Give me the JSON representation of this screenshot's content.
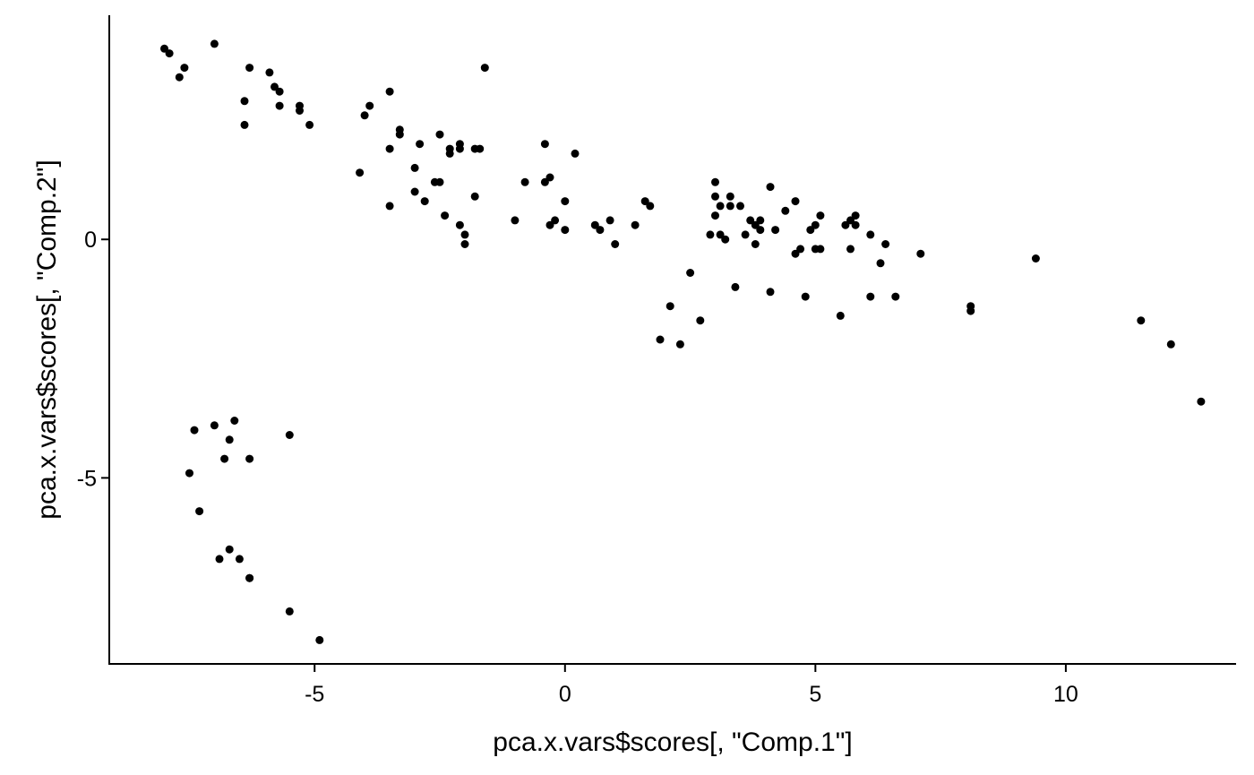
{
  "chart_data": {
    "type": "scatter",
    "xlabel": "pca.x.vars$scores[, \"Comp.1\"]",
    "ylabel": "pca.x.vars$scores[, \"Comp.2\"]",
    "xlim": [
      -9.1,
      13.4
    ],
    "ylim": [
      -8.9,
      4.7
    ],
    "xticks": [
      -5,
      0,
      5,
      10
    ],
    "yticks": [
      -5,
      0
    ],
    "grid": false,
    "legend": "none",
    "point_color": "#000000",
    "points": [
      [
        -8.0,
        4.0
      ],
      [
        -7.9,
        3.9
      ],
      [
        -7.7,
        3.4
      ],
      [
        -7.6,
        3.6
      ],
      [
        -7.0,
        4.1
      ],
      [
        -6.3,
        3.6
      ],
      [
        -6.4,
        2.9
      ],
      [
        -6.4,
        2.4
      ],
      [
        -5.9,
        3.5
      ],
      [
        -5.8,
        3.2
      ],
      [
        -5.7,
        3.1
      ],
      [
        -5.7,
        2.8
      ],
      [
        -5.3,
        2.8
      ],
      [
        -5.3,
        2.7
      ],
      [
        -5.1,
        2.4
      ],
      [
        -4.1,
        1.4
      ],
      [
        -4.0,
        2.6
      ],
      [
        -3.9,
        2.8
      ],
      [
        -3.5,
        1.9
      ],
      [
        -3.5,
        0.7
      ],
      [
        -3.5,
        3.1
      ],
      [
        -3.3,
        2.3
      ],
      [
        -3.3,
        2.2
      ],
      [
        -3.0,
        1.5
      ],
      [
        -3.0,
        1.0
      ],
      [
        -2.9,
        2.0
      ],
      [
        -2.8,
        0.8
      ],
      [
        -2.6,
        1.2
      ],
      [
        -2.5,
        2.2
      ],
      [
        -2.5,
        1.2
      ],
      [
        -2.4,
        0.5
      ],
      [
        -2.3,
        1.8
      ],
      [
        -2.3,
        1.9
      ],
      [
        -2.1,
        2.0
      ],
      [
        -2.1,
        1.9
      ],
      [
        -2.1,
        0.3
      ],
      [
        -2.0,
        0.1
      ],
      [
        -2.0,
        -0.1
      ],
      [
        -1.8,
        1.9
      ],
      [
        -1.8,
        0.9
      ],
      [
        -1.7,
        1.9
      ],
      [
        -1.6,
        3.6
      ],
      [
        -1.0,
        0.4
      ],
      [
        -0.8,
        1.2
      ],
      [
        -0.4,
        2.0
      ],
      [
        -0.4,
        1.2
      ],
      [
        -0.3,
        1.3
      ],
      [
        -0.3,
        0.3
      ],
      [
        -0.2,
        0.4
      ],
      [
        0.0,
        0.2
      ],
      [
        0.0,
        0.8
      ],
      [
        0.2,
        1.8
      ],
      [
        0.6,
        0.3
      ],
      [
        0.7,
        0.2
      ],
      [
        0.9,
        0.4
      ],
      [
        1.0,
        -0.1
      ],
      [
        1.4,
        0.3
      ],
      [
        1.6,
        0.8
      ],
      [
        1.7,
        0.7
      ],
      [
        1.9,
        -2.1
      ],
      [
        2.1,
        -1.4
      ],
      [
        2.3,
        -2.2
      ],
      [
        2.5,
        -0.7
      ],
      [
        2.7,
        -1.7
      ],
      [
        2.9,
        0.1
      ],
      [
        3.0,
        0.5
      ],
      [
        3.0,
        0.9
      ],
      [
        3.0,
        1.2
      ],
      [
        3.1,
        0.7
      ],
      [
        3.1,
        0.1
      ],
      [
        3.2,
        0.0
      ],
      [
        3.3,
        0.7
      ],
      [
        3.3,
        0.9
      ],
      [
        3.4,
        -1.0
      ],
      [
        3.5,
        0.7
      ],
      [
        3.6,
        0.1
      ],
      [
        3.7,
        0.4
      ],
      [
        3.8,
        0.3
      ],
      [
        3.8,
        -0.1
      ],
      [
        3.9,
        0.2
      ],
      [
        3.9,
        0.4
      ],
      [
        4.1,
        1.1
      ],
      [
        4.1,
        -1.1
      ],
      [
        4.2,
        0.2
      ],
      [
        4.4,
        0.6
      ],
      [
        4.6,
        0.8
      ],
      [
        4.6,
        -0.3
      ],
      [
        4.7,
        -0.2
      ],
      [
        4.8,
        -1.2
      ],
      [
        4.9,
        0.2
      ],
      [
        5.0,
        0.3
      ],
      [
        5.0,
        -0.2
      ],
      [
        5.1,
        0.5
      ],
      [
        5.1,
        -0.2
      ],
      [
        5.5,
        -1.6
      ],
      [
        5.6,
        0.3
      ],
      [
        5.7,
        0.4
      ],
      [
        5.7,
        -0.2
      ],
      [
        5.8,
        0.5
      ],
      [
        5.8,
        0.3
      ],
      [
        6.1,
        0.1
      ],
      [
        6.1,
        -1.2
      ],
      [
        6.3,
        -0.5
      ],
      [
        6.4,
        -0.1
      ],
      [
        6.6,
        -1.2
      ],
      [
        7.1,
        -0.3
      ],
      [
        8.1,
        -1.4
      ],
      [
        8.1,
        -1.5
      ],
      [
        9.4,
        -0.4
      ],
      [
        11.5,
        -1.7
      ],
      [
        12.1,
        -2.2
      ],
      [
        12.7,
        -3.4
      ],
      [
        -7.5,
        -4.9
      ],
      [
        -7.3,
        -5.7
      ],
      [
        -7.4,
        -4.0
      ],
      [
        -7.0,
        -3.9
      ],
      [
        -6.7,
        -4.2
      ],
      [
        -6.6,
        -3.8
      ],
      [
        -6.8,
        -4.6
      ],
      [
        -6.3,
        -4.6
      ],
      [
        -5.5,
        -4.1
      ],
      [
        -6.7,
        -6.5
      ],
      [
        -6.9,
        -6.7
      ],
      [
        -6.5,
        -6.7
      ],
      [
        -6.3,
        -7.1
      ],
      [
        -6.3,
        -7.1
      ],
      [
        -5.5,
        -7.8
      ],
      [
        -4.9,
        -8.4
      ]
    ]
  }
}
